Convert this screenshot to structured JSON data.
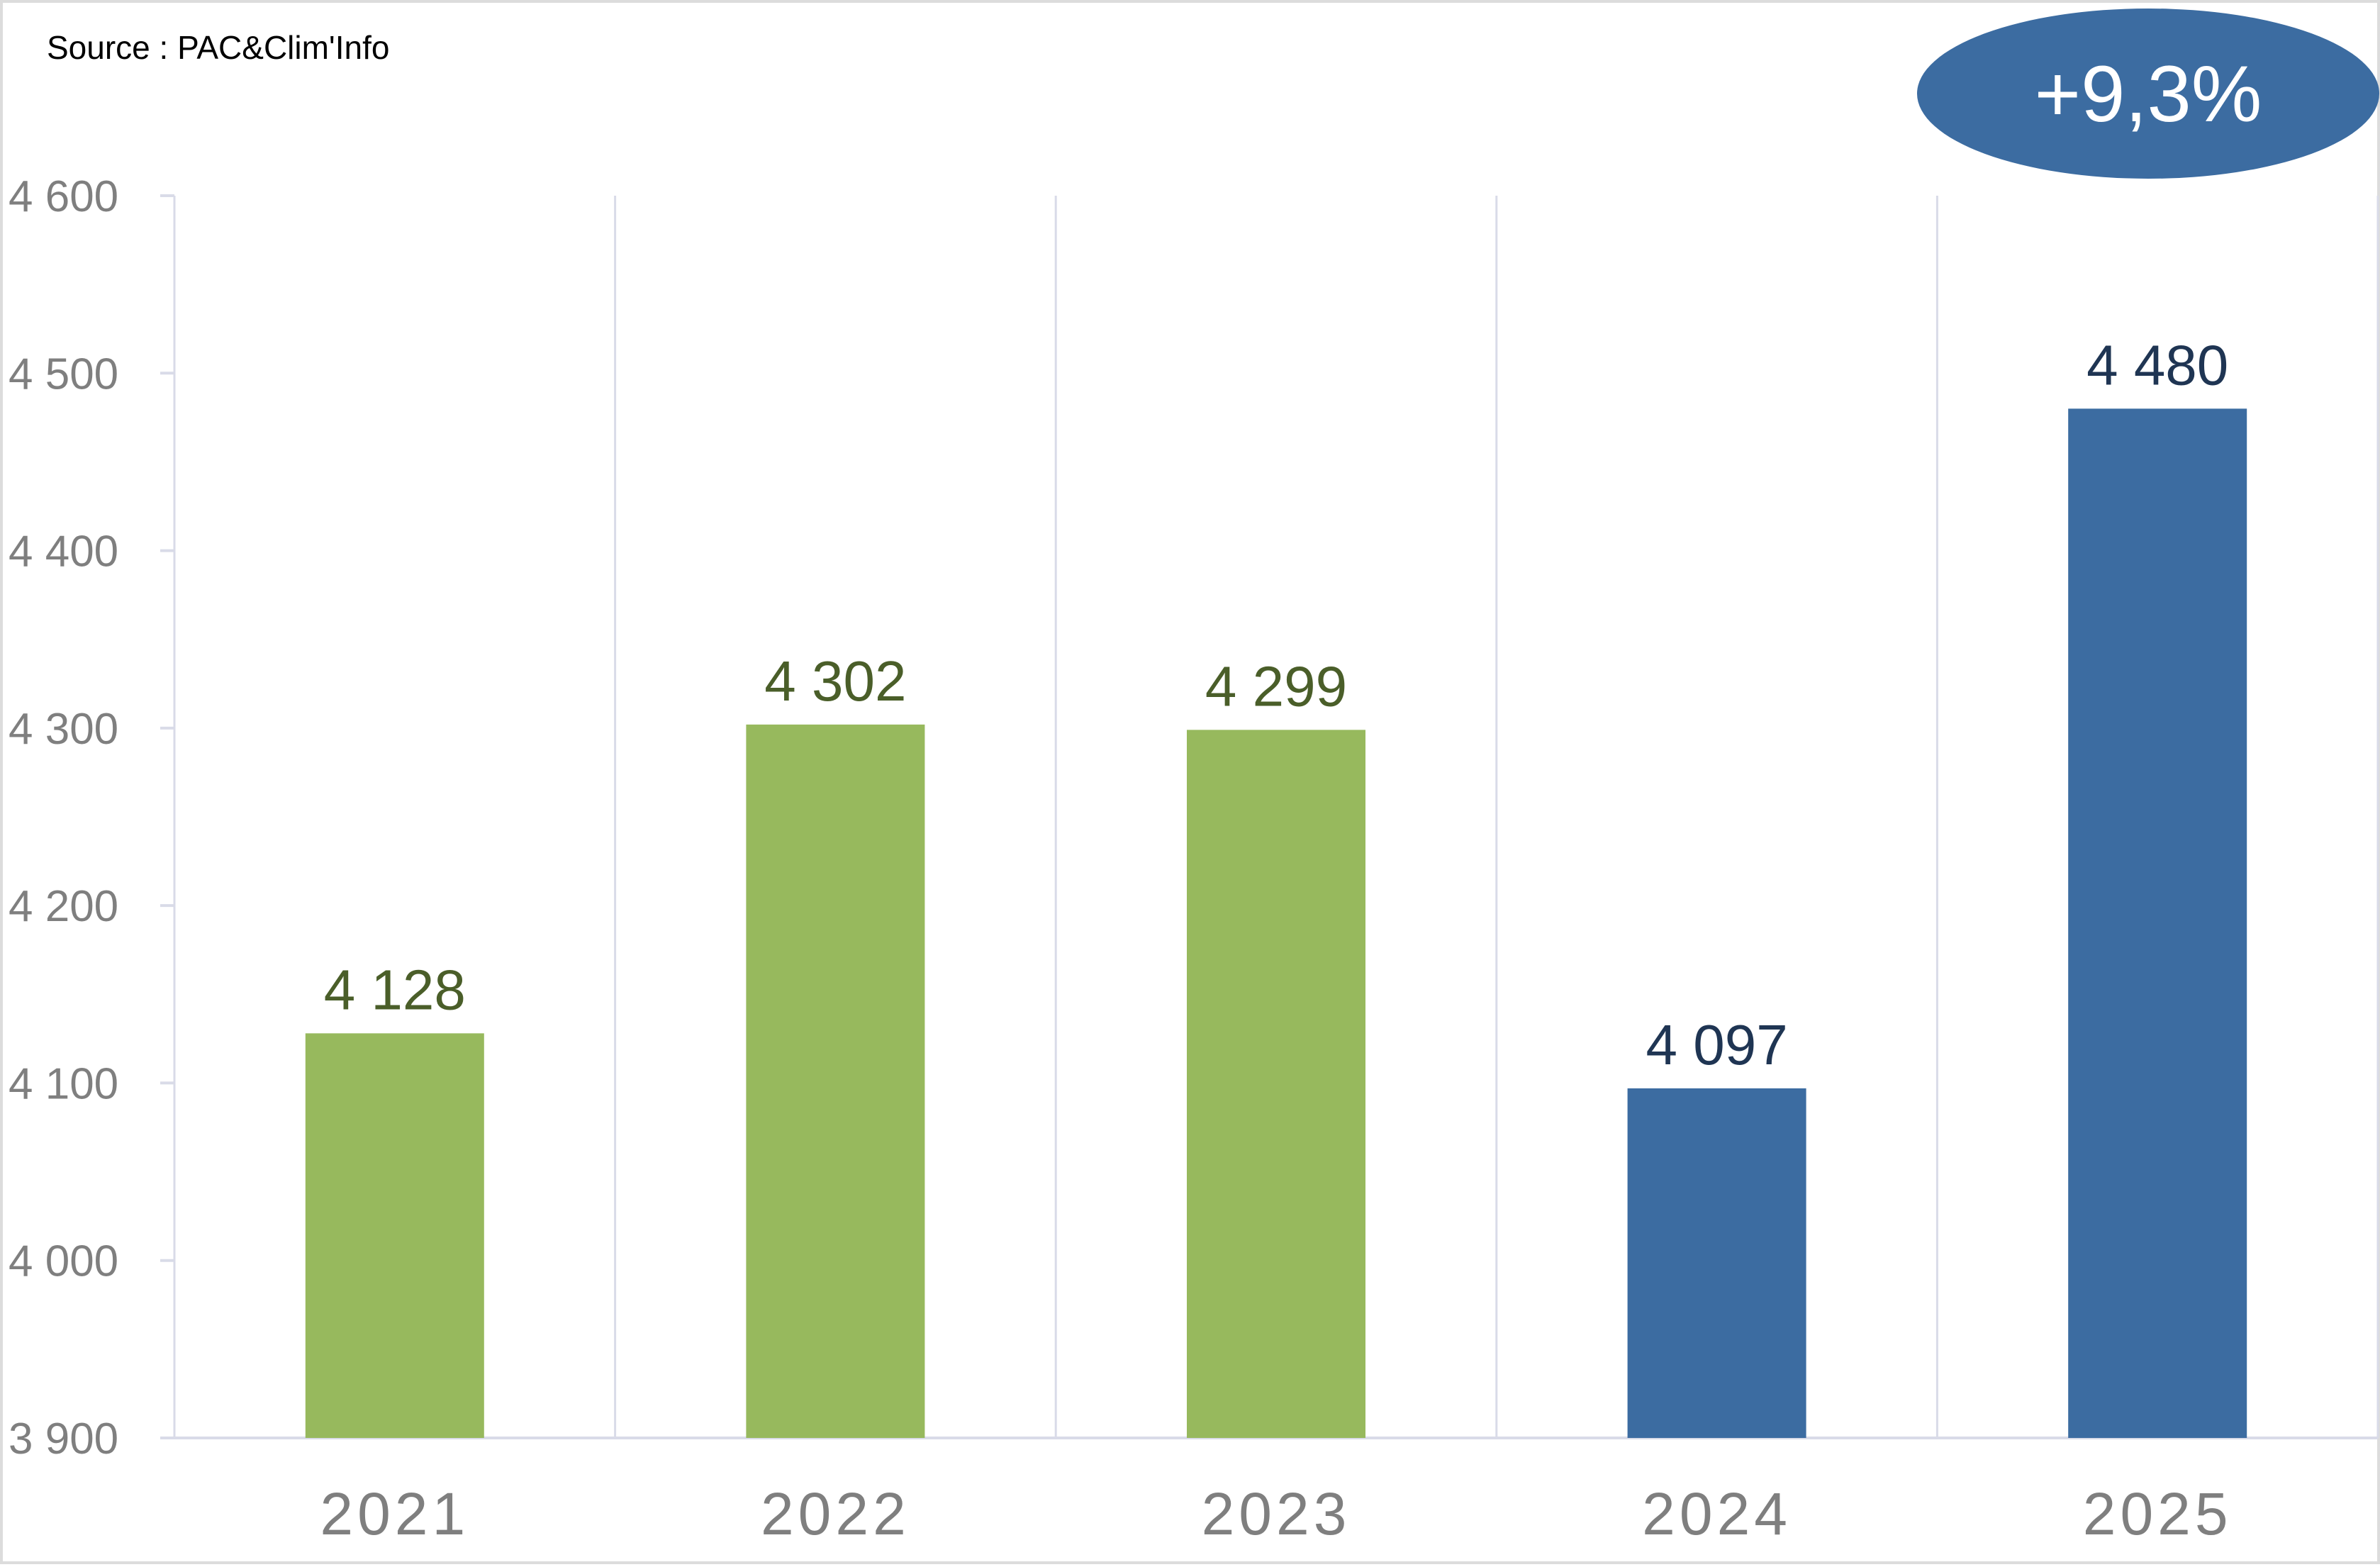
{
  "source": "Source : PAC&Clim'Info",
  "growth_badge": "+9,3%",
  "colors": {
    "green_bar": "#97b95d",
    "green_label": "#4a5e29",
    "blue_bar": "#3c6ca1",
    "blue_label": "#1f3553",
    "axis_text": "#7f7f7f",
    "grid": "#d9dbe8"
  },
  "chart_data": {
    "type": "bar",
    "categories": [
      "2021",
      "2022",
      "2023",
      "2024",
      "2025"
    ],
    "values": [
      4128,
      4302,
      4299,
      4097,
      4480
    ],
    "value_labels": [
      "4 128",
      "4 302",
      "4 299",
      "4 097",
      "4 480"
    ],
    "bar_colors": [
      "green_bar",
      "green_bar",
      "green_bar",
      "blue_bar",
      "blue_bar"
    ],
    "label_colors": [
      "green_label",
      "green_label",
      "green_label",
      "blue_label",
      "blue_label"
    ],
    "ylim": [
      3900,
      4600
    ],
    "yticks": [
      3900,
      4000,
      4100,
      4200,
      4300,
      4400,
      4500,
      4600
    ],
    "ytick_labels": [
      "3 900",
      "4 000",
      "4 100",
      "4 200",
      "4 300",
      "4 400",
      "4 500",
      "4 600"
    ],
    "grid": "vertical separators between categories",
    "legend": "none"
  }
}
